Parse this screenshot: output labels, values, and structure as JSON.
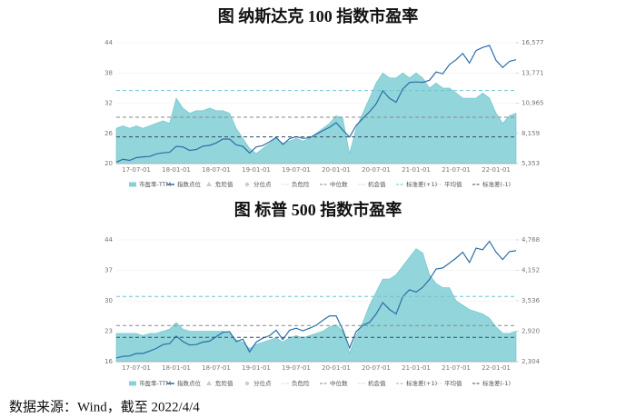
{
  "charts": [
    {
      "chart_data": {
        "type": "area-line",
        "title": "图  纳斯达克 100 指数市盈率",
        "categories": [
          null,
          null,
          null,
          "17-07-01",
          null,
          null,
          null,
          null,
          null,
          "18-01-01",
          null,
          null,
          null,
          null,
          null,
          "18-07-01",
          null,
          null,
          null,
          null,
          null,
          "19-01-01",
          null,
          null,
          null,
          null,
          null,
          "19-07-01",
          null,
          null,
          null,
          null,
          null,
          "20-01-01",
          null,
          null,
          null,
          null,
          null,
          "20-07-01",
          null,
          null,
          null,
          null,
          null,
          "21-01-01",
          null,
          null,
          null,
          null,
          null,
          "21-07-01",
          null,
          null,
          null,
          null,
          null,
          "22-01-01",
          null,
          null,
          null
        ],
        "series": [
          {
            "name": "市盈率-TTM",
            "color": "#86d0d6",
            "values": [
              27,
              27.5,
              27,
              27.5,
              27,
              27.5,
              28,
              28.5,
              28,
              33,
              31,
              30,
              30.5,
              30.5,
              31,
              30.5,
              30.5,
              30,
              27,
              25,
              23,
              22,
              23,
              24,
              25,
              24,
              24.5,
              25,
              24.5,
              25,
              26,
              27,
              28,
              29.5,
              29,
              22,
              27,
              30,
              33,
              36,
              38,
              37,
              37,
              38,
              37,
              38,
              37,
              35,
              36,
              35,
              35,
              34,
              33,
              33,
              33,
              34,
              33,
              30,
              28,
              29.5,
              30
            ]
          },
          {
            "name": "指数点位",
            "color": "#2a6fa8",
            "axis": "y2",
            "values": [
              5500,
              5750,
              5650,
              5900,
              5980,
              6010,
              6250,
              6350,
              6400,
              6950,
              6900,
              6580,
              6650,
              6970,
              7040,
              7270,
              7630,
              7630,
              7080,
              6950,
              6330,
              6900,
              7020,
              7380,
              7780,
              7130,
              7670,
              7850,
              7690,
              7750,
              8080,
              8400,
              8730,
              9150,
              8460,
              7810,
              8890,
              9550,
              10160,
              10900,
              12110,
              11420,
              11050,
              12270,
              12890,
              12930,
              12900,
              13090,
              13860,
              13690,
              14550,
              15000,
              15580,
              14690,
              15850,
              16140,
              16320,
              14930,
              14270,
              14840,
              15000
            ]
          }
        ],
        "reference_lines": [
          {
            "name": "中位数",
            "value": 29.2,
            "color": "#8a8a8a"
          },
          {
            "name": "标准差(+1)",
            "value": 34.5,
            "color": "#6ec3d0"
          },
          {
            "name": "标准差(-1)",
            "value": 25.3,
            "color": "#34486a"
          }
        ],
        "inactive_legend": [
          "危险值",
          "分位点",
          "负危险",
          "机会值",
          "平均值"
        ],
        "ylim": [
          20,
          44
        ],
        "yticks": [
          20,
          26,
          32,
          38,
          44
        ],
        "y2lim": [
          5353,
          16577
        ],
        "y2ticks": [
          {
            "value": 5353,
            "label": "5,353"
          },
          {
            "value": 8159,
            "label": "8,159"
          },
          {
            "value": 10965,
            "label": "10,965"
          },
          {
            "value": 13771,
            "label": "13,771"
          },
          {
            "value": 16577,
            "label": "16,577"
          }
        ],
        "grid": true
      }
    },
    {
      "chart_data": {
        "type": "area-line",
        "title": "图  标普 500 指数市盈率",
        "categories": [
          null,
          null,
          null,
          "17-07-01",
          null,
          null,
          null,
          null,
          null,
          "18-01-01",
          null,
          null,
          null,
          null,
          null,
          "18-07-01",
          null,
          null,
          null,
          null,
          null,
          "19-01-01",
          null,
          null,
          null,
          null,
          null,
          "19-07-01",
          null,
          null,
          null,
          null,
          null,
          "20-01-01",
          null,
          null,
          null,
          null,
          null,
          "20-07-01",
          null,
          null,
          null,
          null,
          null,
          "21-01-01",
          null,
          null,
          null,
          null,
          null,
          "21-07-01",
          null,
          null,
          null,
          null,
          null,
          "22-01-01",
          null,
          null,
          null
        ],
        "series": [
          {
            "name": "市盈率-TTM",
            "color": "#86d0d6",
            "values": [
              22.5,
              22.5,
              22.5,
              22.5,
              22,
              22.5,
              22.5,
              23,
              23.5,
              25,
              23.5,
              23,
              23,
              23,
              23,
              23,
              23,
              22.5,
              21,
              20.5,
              19,
              20,
              20.5,
              21,
              21.5,
              20.5,
              21.5,
              22,
              21.5,
              22,
              22.5,
              23,
              24,
              24.5,
              23,
              18,
              22,
              25,
              29,
              32,
              35,
              35,
              36,
              38,
              40,
              42,
              41,
              36,
              34,
              33,
              33,
              30,
              29,
              28,
              27.5,
              27,
              26,
              24,
              22.5,
              22.5,
              23
            ]
          },
          {
            "name": "指数点位",
            "color": "#2a6fa8",
            "axis": "y2",
            "values": [
              2380,
              2410,
              2420,
              2470,
              2470,
              2520,
              2570,
              2650,
              2670,
              2820,
              2710,
              2640,
              2650,
              2700,
              2720,
              2810,
              2900,
              2910,
              2710,
              2760,
              2500,
              2700,
              2780,
              2830,
              2940,
              2750,
              2940,
              2980,
              2930,
              2980,
              3040,
              3140,
              3230,
              3230,
              2950,
              2580,
              2910,
              3040,
              3100,
              3270,
              3500,
              3360,
              3270,
              3620,
              3760,
              3710,
              3810,
              3970,
              4180,
              4200,
              4300,
              4400,
              4520,
              4310,
              4600,
              4570,
              4740,
              4520,
              4370,
              4530,
              4550
            ]
          }
        ],
        "reference_lines": [
          {
            "name": "中位数",
            "value": 24.3,
            "color": "#8a8a8a"
          },
          {
            "name": "标准差(+1)",
            "value": 31,
            "color": "#6ec3d0"
          },
          {
            "name": "标准差(-1)",
            "value": 21.6,
            "color": "#34486a"
          }
        ],
        "inactive_legend": [
          "危险值",
          "分位点",
          "负危险",
          "机会值",
          "平均值"
        ],
        "ylim": [
          16,
          44
        ],
        "yticks": [
          16,
          23,
          30,
          37,
          44
        ],
        "y2lim": [
          2304,
          4768
        ],
        "y2ticks": [
          {
            "value": 2304,
            "label": "2,304"
          },
          {
            "value": 2920,
            "label": "2,920"
          },
          {
            "value": 3536,
            "label": "3,536"
          },
          {
            "value": 4152,
            "label": "4,152"
          },
          {
            "value": 4768,
            "label": "4,768"
          }
        ],
        "grid": true
      }
    }
  ],
  "footer": "数据来源：Wind，截至 2022/4/4"
}
